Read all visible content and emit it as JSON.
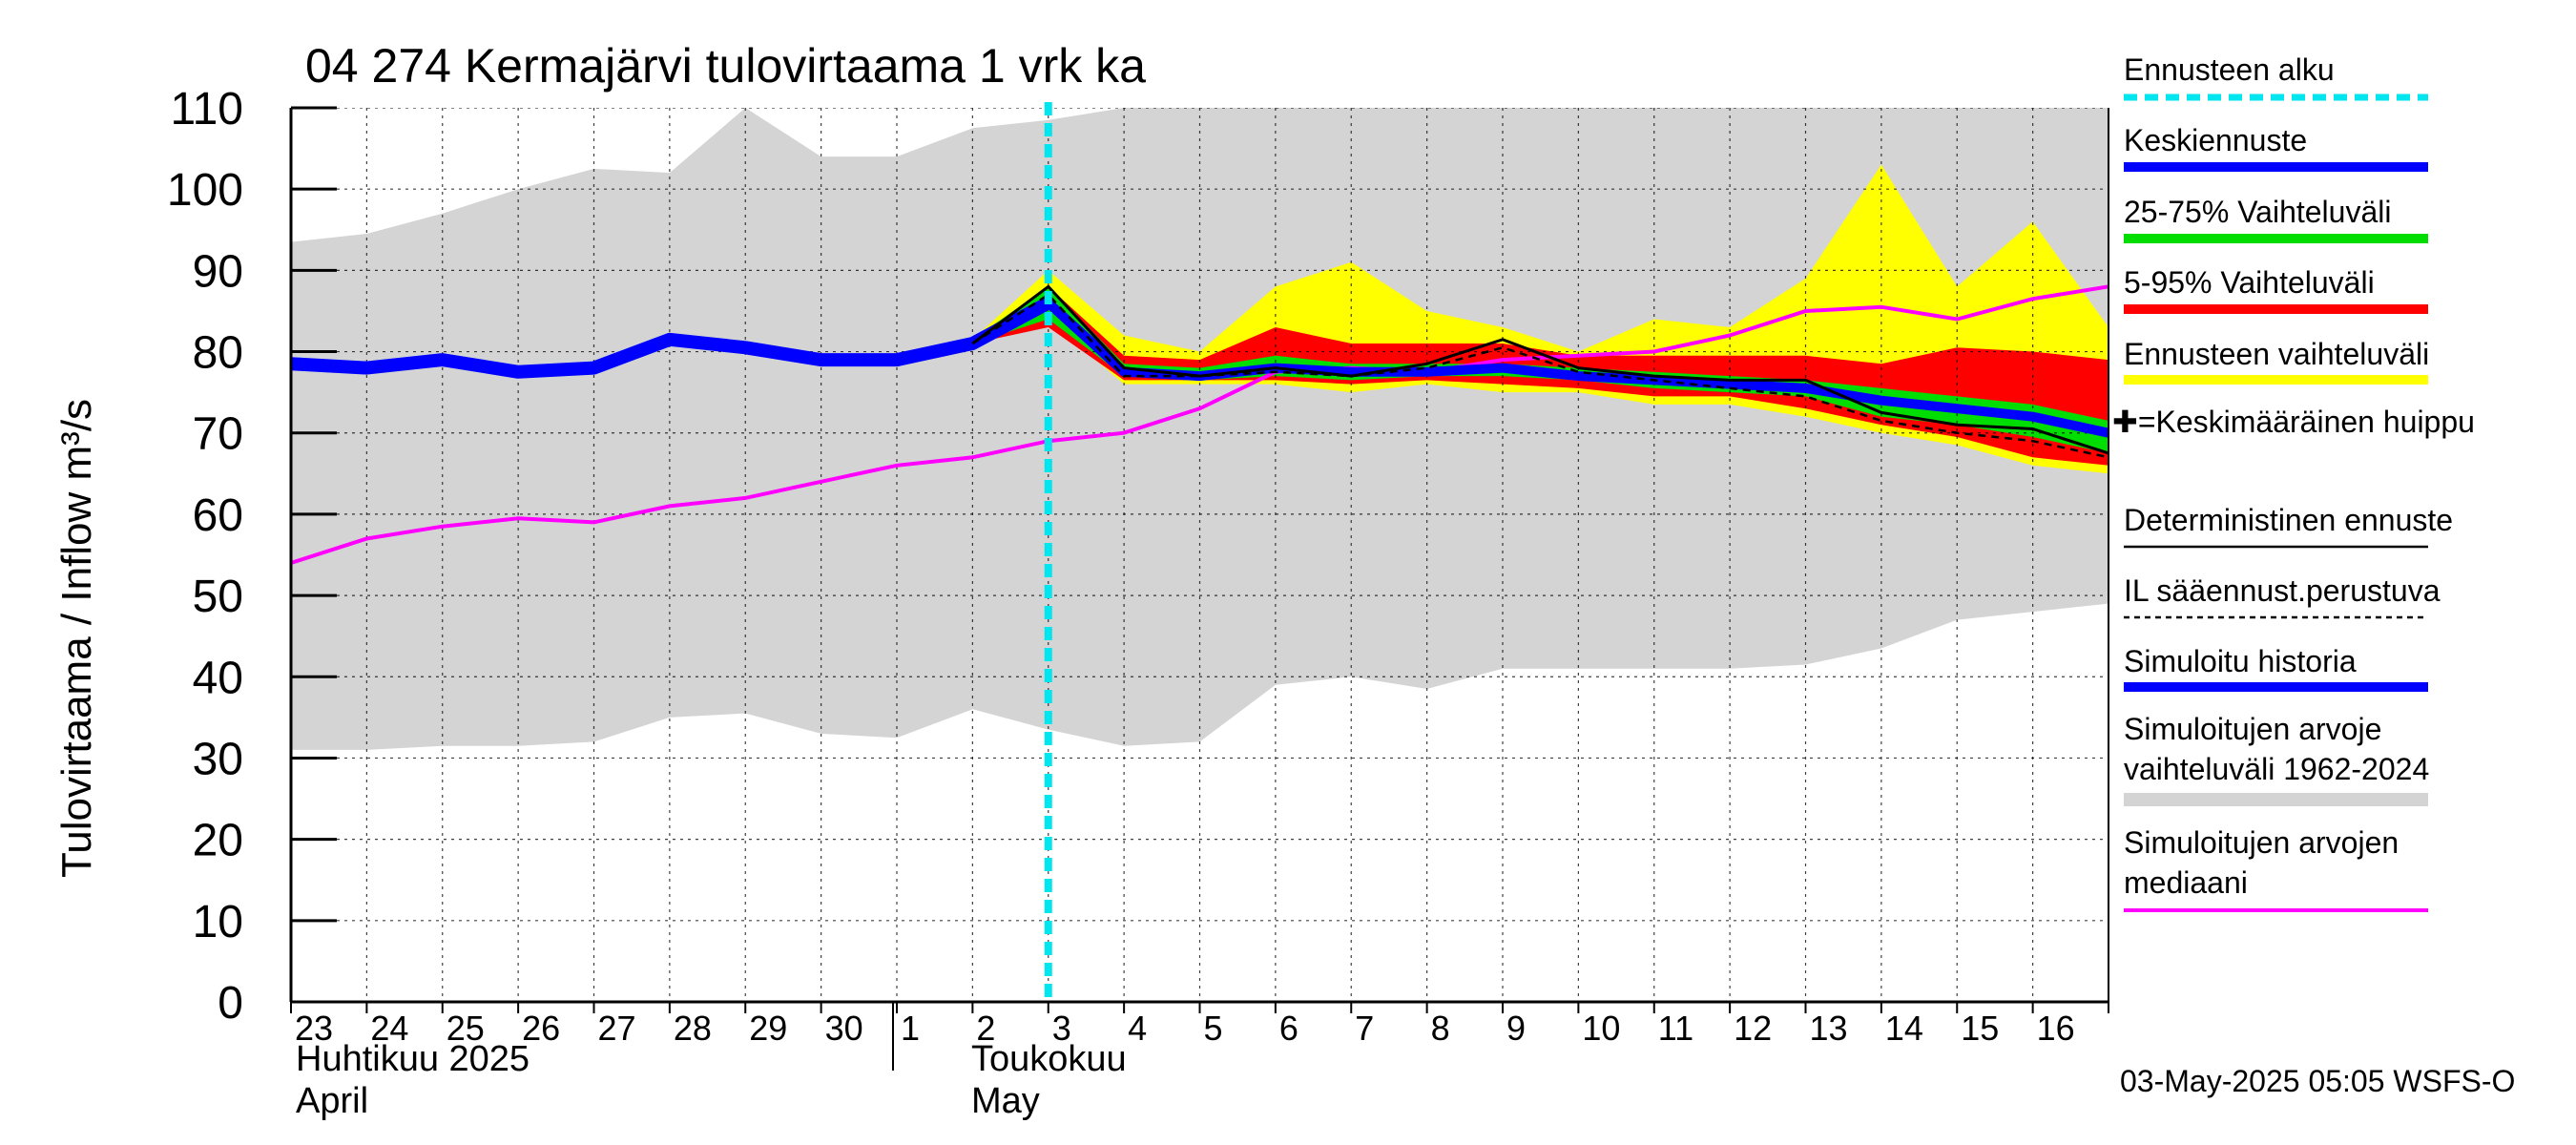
{
  "title": "04 274 Kermajärvi tulovirtaama 1 vrk ka",
  "ylabel": "Tulovirtaama / Inflow    m³/s",
  "timestamp": "03-May-2025 05:05 WSFS-O",
  "months": [
    {
      "fi": "Huhtikuu  2025",
      "en": "April"
    },
    {
      "fi": "Toukokuu",
      "en": "May"
    }
  ],
  "colors": {
    "history_band": "#d4d4d4",
    "forecast_range": "#ffff00",
    "p5_95": "#ff0000",
    "p25_75": "#00dd00",
    "mean_forecast": "#0000ff",
    "simulated_history": "#0000ff",
    "median": "#ff00ff",
    "forecast_start": "#00e5ee",
    "deterministic": "#000000"
  },
  "legend": [
    {
      "label": "Ennusteen alku",
      "style": "forecast_start"
    },
    {
      "label": "Keskiennuste",
      "style": "mean_forecast"
    },
    {
      "label": "25-75% Vaihteluväli",
      "style": "p25_75"
    },
    {
      "label": "5-95% Vaihteluväli",
      "style": "p5_95"
    },
    {
      "label": "Ennusteen vaihteluväli",
      "style": "forecast_range"
    },
    {
      "label": "✚=Keskimääräinen huippu",
      "style": "peak"
    },
    {
      "label": "Deterministinen ennuste",
      "style": "deterministic"
    },
    {
      "label": "IL sääennust.perustuva",
      "style": "il"
    },
    {
      "label": "Simuloitu historia",
      "style": "simulated_history"
    },
    {
      "label": "Simuloitujen arvojen vaihteluväli 1962-2024",
      "style": "history_band"
    },
    {
      "label": "Simuloitujen arvojen mediaani",
      "style": "median"
    }
  ],
  "chart_data": {
    "type": "line",
    "title": "04 274 Kermajärvi tulovirtaama 1 vrk ka",
    "ylabel": "Tulovirtaama / Inflow m³/s",
    "xlabel": "",
    "ylim": [
      0,
      110
    ],
    "yticks": [
      0,
      10,
      20,
      30,
      40,
      50,
      60,
      70,
      80,
      90,
      100,
      110
    ],
    "x_start_day": 23,
    "x_end_day": 47,
    "x_tick_labels": [
      "23",
      "24",
      "25",
      "26",
      "27",
      "28",
      "29",
      "30",
      "1",
      "2",
      "3",
      "4",
      "5",
      "6",
      "7",
      "8",
      "9",
      "10",
      "11",
      "12",
      "13",
      "14",
      "15",
      "16"
    ],
    "forecast_start_day": 33,
    "history_band": {
      "x": [
        23,
        24,
        25,
        26,
        27,
        28,
        29,
        30,
        31,
        32,
        33,
        34,
        35,
        36,
        37,
        38,
        39,
        40,
        41,
        42,
        43,
        44,
        45,
        46,
        47
      ],
      "upper": [
        93.5,
        94.5,
        97,
        100,
        102.5,
        102,
        110,
        104,
        104,
        107.5,
        108.5,
        110,
        110,
        110,
        110,
        110,
        110,
        110,
        110,
        110,
        110,
        110,
        110,
        110,
        110
      ],
      "lower": [
        31,
        31,
        31.5,
        31.5,
        32,
        35,
        35.5,
        33,
        32.5,
        36,
        33.5,
        31.5,
        32,
        39,
        40,
        38.5,
        41,
        41,
        41,
        41,
        41.5,
        43.5,
        47,
        48,
        49
      ]
    },
    "simulated_history": {
      "x": [
        23,
        24,
        25,
        26,
        27,
        28,
        29,
        30,
        31,
        32,
        33
      ],
      "y": [
        78.5,
        78,
        79,
        77.5,
        78,
        81.5,
        80.5,
        79,
        79,
        81,
        86
      ]
    },
    "median": {
      "x": [
        23,
        24,
        25,
        26,
        27,
        28,
        29,
        30,
        31,
        32,
        33,
        34,
        35,
        36,
        37,
        38,
        39,
        40,
        41,
        42,
        43,
        44,
        45,
        46,
        47
      ],
      "y": [
        54,
        57,
        58.5,
        59.5,
        59,
        61,
        62,
        64,
        66,
        67,
        69,
        70,
        73,
        77.5,
        78,
        77.5,
        79,
        79.5,
        80,
        82,
        85,
        85.5,
        84,
        86.5,
        88
      ]
    },
    "forecast_range": {
      "x": [
        32,
        33,
        34,
        35,
        36,
        37,
        38,
        39,
        40,
        41,
        42,
        43,
        44,
        45,
        46,
        47
      ],
      "upper": [
        81.5,
        90,
        82,
        80,
        88,
        91,
        85,
        83,
        80,
        84,
        83,
        89,
        103,
        88,
        96,
        83
      ],
      "lower": [
        81,
        84,
        76,
        76,
        76,
        75,
        76,
        75,
        75,
        73.5,
        73.5,
        72,
        70,
        68.5,
        66,
        65
      ]
    },
    "p5_95": {
      "x": [
        32,
        33,
        34,
        35,
        36,
        37,
        38,
        39,
        40,
        41,
        42,
        43,
        44,
        45,
        46,
        47
      ],
      "upper": [
        81.5,
        88,
        79.5,
        79,
        83,
        81,
        81,
        81,
        79.5,
        79.5,
        79.5,
        79.5,
        78.5,
        80.5,
        80,
        79
      ],
      "lower": [
        81,
        83,
        76.5,
        76.5,
        76.5,
        76,
        76.5,
        76,
        75.5,
        74.5,
        74.5,
        73,
        71,
        69.5,
        67,
        66
      ]
    },
    "p25_75": {
      "x": [
        32,
        33,
        34,
        35,
        36,
        37,
        38,
        39,
        40,
        41,
        42,
        43,
        44,
        45,
        46,
        47
      ],
      "upper": [
        81.5,
        88,
        78.5,
        78,
        79.5,
        78.5,
        78.5,
        78.5,
        78,
        77.5,
        77,
        76.5,
        75.5,
        74.5,
        73.5,
        71.5
      ],
      "lower": [
        81,
        84,
        77,
        76.5,
        77,
        76.5,
        77,
        77,
        76.5,
        75.5,
        75,
        74.5,
        72,
        71,
        69.5,
        67.5
      ]
    },
    "mean_forecast": {
      "x": [
        32,
        33,
        34,
        35,
        36,
        37,
        38,
        39,
        40,
        41,
        42,
        43,
        44,
        45,
        46,
        47
      ],
      "y": [
        81,
        86,
        77.5,
        77,
        78,
        77.5,
        77.5,
        78,
        77,
        76.5,
        76,
        75.5,
        74,
        73,
        72,
        70
      ]
    },
    "deterministic": {
      "x": [
        32,
        33,
        34,
        35,
        36,
        37,
        38,
        39,
        40,
        41,
        42,
        43,
        44,
        45,
        46,
        47
      ],
      "y": [
        81,
        88,
        78,
        77,
        78,
        77,
        78.5,
        81.5,
        78,
        77,
        76.5,
        76.5,
        72.5,
        71,
        70.5,
        67.5
      ]
    },
    "il_forecast": {
      "x": [
        32,
        33,
        34,
        35,
        36,
        37,
        38,
        39,
        40,
        41,
        42,
        43,
        44,
        45,
        46,
        47
      ],
      "y": [
        81,
        87,
        77,
        77,
        77.5,
        77,
        78,
        80.5,
        77.5,
        76.5,
        75.5,
        74.5,
        71.5,
        70,
        69,
        67
      ]
    }
  }
}
